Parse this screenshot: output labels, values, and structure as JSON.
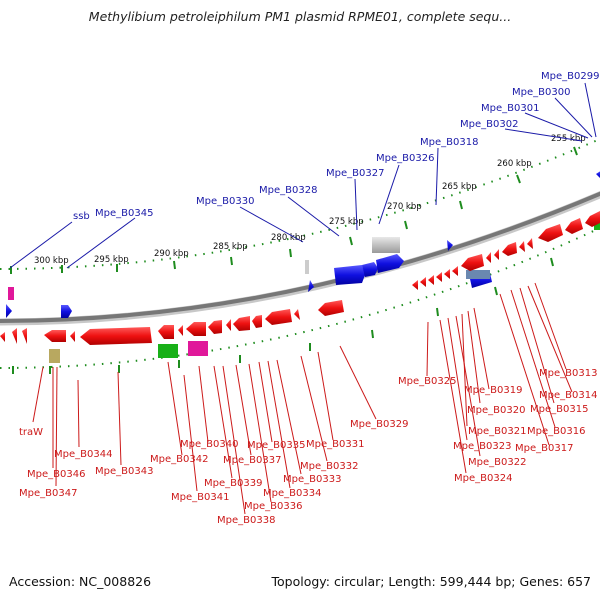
{
  "title": "Methylibium petroleiphilum PM1 plasmid RPME01, complete sequ...",
  "accession_text": "Accession: NC_008826",
  "summary_text": "Topology: circular; Length: 599,444 bp; Genes: 657",
  "colors": {
    "backbone": "#777777",
    "forward_gene_label": "#1a1aa8",
    "reverse_gene_label": "#cc1a1a",
    "forward_gene": "#1010e0",
    "reverse_gene": "#ee1111",
    "tick": "#1e8c1e"
  },
  "scale_labels": [
    "255 kbp",
    "260 kbp",
    "265 kbp",
    "270 kbp",
    "275 kbp",
    "280 kbp",
    "285 kbp",
    "290 kbp",
    "295 kbp",
    "300 kbp"
  ],
  "top_labels": [
    "Mpe_B0299",
    "Mpe_B0300",
    "Mpe_B0301",
    "Mpe_B0302",
    "Mpe_B0318",
    "Mpe_B0326",
    "Mpe_B0327",
    "Mpe_B0328",
    "Mpe_B0330",
    "Mpe_B0345",
    "ssb"
  ],
  "bottom_labels": [
    "traW",
    "Mpe_B0346",
    "Mpe_B0347",
    "Mpe_B0344",
    "Mpe_B0343",
    "Mpe_B0342",
    "Mpe_B0341",
    "Mpe_B0340",
    "Mpe_B0339",
    "Mpe_B0338",
    "Mpe_B0337",
    "Mpe_B0336",
    "Mpe_B0335",
    "Mpe_B0334",
    "Mpe_B0333",
    "Mpe_B0332",
    "Mpe_B0331",
    "Mpe_B0329",
    "Mpe_B0325",
    "Mpe_B0324",
    "Mpe_B0323",
    "Mpe_B0322",
    "Mpe_B0321",
    "Mpe_B0320",
    "Mpe_B0319",
    "Mpe_B0317",
    "Mpe_B0316",
    "Mpe_B0315",
    "Mpe_B0314",
    "Mpe_B0313"
  ]
}
